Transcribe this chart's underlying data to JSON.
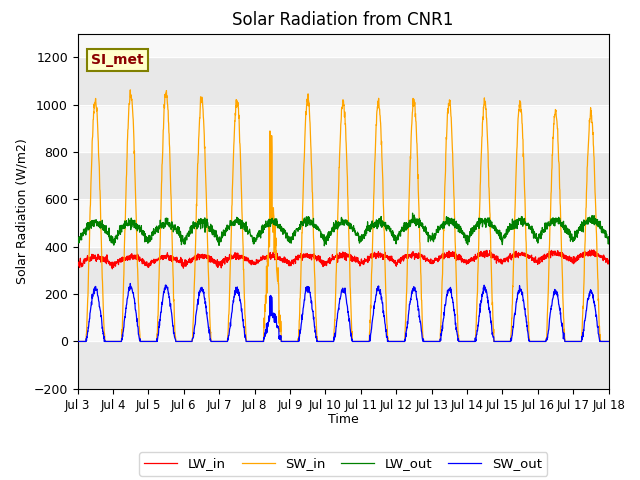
{
  "title": "Solar Radiation from CNR1",
  "ylabel": "Solar Radiation (W/m2)",
  "xlabel": "Time",
  "annotation": "SI_met",
  "ylim": [
    -200,
    1300
  ],
  "yticks": [
    -200,
    0,
    200,
    400,
    600,
    800,
    1000,
    1200
  ],
  "legend_labels": [
    "LW_in",
    "SW_in",
    "LW_out",
    "SW_out"
  ],
  "colors": [
    "red",
    "orange",
    "green",
    "blue"
  ],
  "xtick_labels": [
    "Jul 3",
    "Jul 4",
    "Jul 5",
    "Jul 6",
    "Jul 7",
    "Jul 8",
    "Jul 9",
    "Jul 10",
    "Jul 11",
    "Jul 12",
    "Jul 13",
    "Jul 14",
    "Jul 15",
    "Jul 16",
    "Jul 17",
    "Jul 18"
  ],
  "n_days": 15,
  "band_colors": [
    "#e8e8e8",
    "#f8f8f8"
  ],
  "lw_in_base": 320,
  "lw_out_base": 420,
  "sw_in_peak": 1010,
  "sw_out_ratio": 0.22
}
